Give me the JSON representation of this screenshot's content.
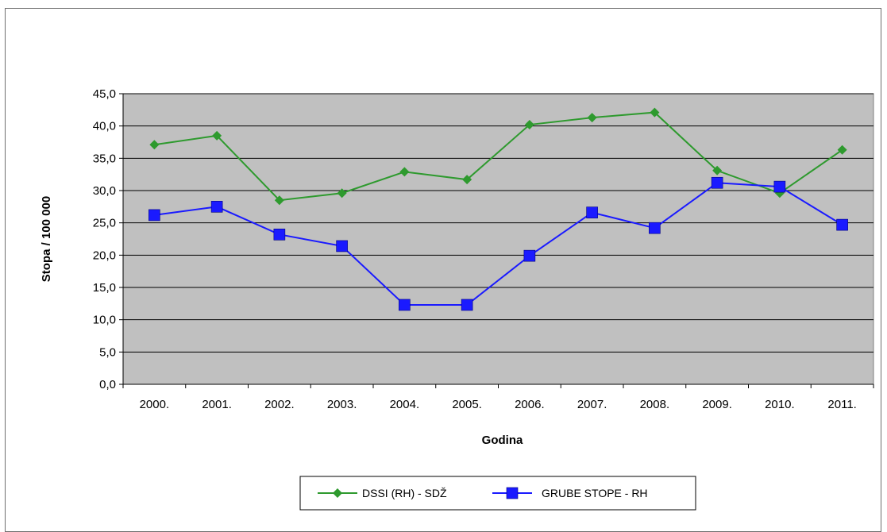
{
  "chart_data": {
    "type": "line",
    "title": "",
    "xlabel": "Godina",
    "ylabel": "Stopa / 100 000",
    "categories": [
      "2000.",
      "2001.",
      "2002.",
      "2003.",
      "2004.",
      "2005.",
      "2006.",
      "2007.",
      "2008.",
      "2009.",
      "2010.",
      "2011."
    ],
    "ylim": [
      0,
      45
    ],
    "yticks": [
      "0,0",
      "5,0",
      "10,0",
      "15,0",
      "20,0",
      "25,0",
      "30,0",
      "35,0",
      "40,0",
      "45,0"
    ],
    "grid": true,
    "legend_position": "bottom",
    "plot_background": "#c0c0c0",
    "series": [
      {
        "name": "DSSI (RH) - SDŽ",
        "color": "#2e9a2e",
        "marker": "diamond",
        "values": [
          37.1,
          38.5,
          28.5,
          29.6,
          32.9,
          31.7,
          40.2,
          41.3,
          42.1,
          33.1,
          29.6,
          36.3
        ]
      },
      {
        "name": "GRUBE STOPE - RH",
        "color": "#1a1aff",
        "marker": "square",
        "values": [
          26.2,
          27.5,
          23.2,
          21.4,
          12.3,
          12.3,
          19.9,
          26.6,
          24.2,
          31.2,
          30.6,
          24.7
        ]
      }
    ]
  }
}
